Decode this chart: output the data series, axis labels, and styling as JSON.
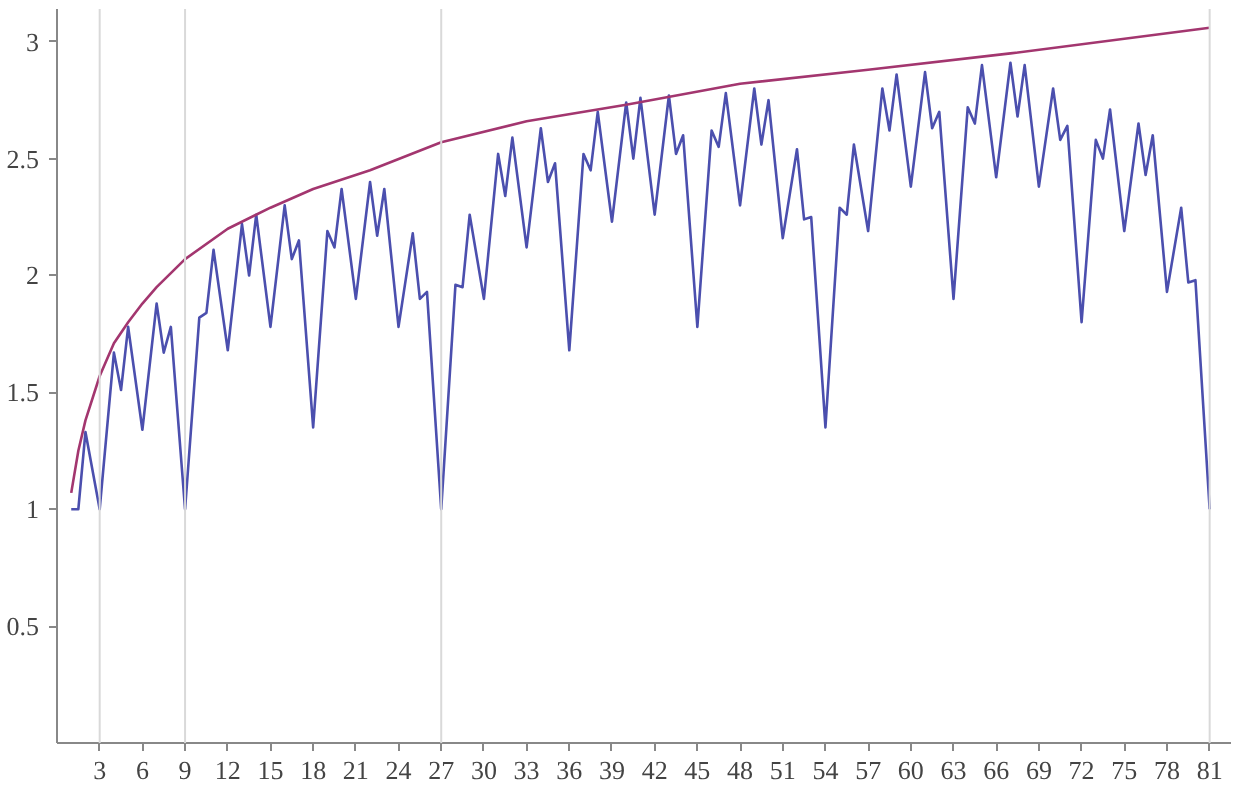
{
  "chart_data": {
    "type": "line",
    "xlim": [
      0,
      82.5
    ],
    "ylim": [
      0,
      3.14
    ],
    "xticks": [
      3,
      6,
      9,
      12,
      15,
      18,
      21,
      24,
      27,
      30,
      33,
      36,
      39,
      42,
      45,
      48,
      51,
      54,
      57,
      60,
      63,
      66,
      69,
      72,
      75,
      78,
      81
    ],
    "yticks": [
      0.5,
      1,
      1.5,
      2,
      2.5,
      3
    ],
    "grid": false,
    "marker": "none",
    "line_style": "solid",
    "ref_lines": [
      {
        "axis": "x",
        "value": 3,
        "color": "#d9d9d9"
      },
      {
        "axis": "x",
        "value": 9,
        "color": "#d9d9d9"
      },
      {
        "axis": "x",
        "value": 27,
        "color": "#d9d9d9"
      },
      {
        "axis": "x",
        "value": 81,
        "color": "#d9d9d9"
      }
    ],
    "series": [
      {
        "color": "#4b4fae",
        "x": [
          1,
          1.5,
          2,
          3,
          4,
          4.5,
          5,
          6,
          7,
          7.5,
          8,
          9,
          10,
          10.5,
          11,
          12,
          13,
          13.5,
          14,
          15,
          16,
          16.5,
          17,
          18,
          19,
          19.5,
          20,
          21,
          22,
          22.5,
          23,
          24,
          25,
          25.5,
          26,
          27,
          28,
          28.5,
          29,
          30,
          31,
          31.5,
          32,
          33,
          34,
          34.5,
          35,
          36,
          37,
          37.5,
          38,
          39,
          40,
          40.5,
          41,
          42,
          43,
          43.5,
          44,
          45,
          46,
          46.5,
          47,
          48,
          49,
          49.5,
          50,
          51,
          52,
          52.5,
          53,
          54,
          55,
          55.5,
          56,
          57,
          58,
          58.5,
          59,
          60,
          61,
          61.5,
          62,
          63,
          64,
          64.5,
          65,
          66,
          67,
          67.5,
          68,
          69,
          70,
          70.5,
          71,
          72,
          73,
          73.5,
          74,
          75,
          76,
          76.5,
          77,
          78,
          79,
          79.5,
          80,
          81
        ],
        "values": [
          1,
          1,
          1.33,
          1,
          1.67,
          1.51,
          1.78,
          1.34,
          1.88,
          1.67,
          1.78,
          1,
          1.82,
          1.84,
          2.11,
          1.68,
          2.22,
          2.0,
          2.26,
          1.78,
          2.3,
          2.07,
          2.15,
          1.35,
          2.19,
          2.12,
          2.37,
          1.9,
          2.4,
          2.17,
          2.37,
          1.78,
          2.18,
          1.9,
          1.93,
          1,
          1.96,
          1.95,
          2.26,
          1.9,
          2.52,
          2.34,
          2.59,
          2.12,
          2.63,
          2.4,
          2.48,
          1.68,
          2.52,
          2.45,
          2.7,
          2.23,
          2.74,
          2.5,
          2.76,
          2.26,
          2.77,
          2.52,
          2.6,
          1.78,
          2.62,
          2.55,
          2.78,
          2.3,
          2.8,
          2.56,
          2.75,
          2.16,
          2.54,
          2.24,
          2.25,
          1.35,
          2.29,
          2.26,
          2.56,
          2.19,
          2.8,
          2.62,
          2.86,
          2.38,
          2.87,
          2.63,
          2.7,
          1.9,
          2.72,
          2.65,
          2.9,
          2.42,
          2.91,
          2.68,
          2.9,
          2.38,
          2.8,
          2.58,
          2.64,
          1.8,
          2.58,
          2.5,
          2.71,
          2.19,
          2.65,
          2.43,
          2.6,
          1.93,
          2.29,
          1.97,
          1.98,
          1
        ]
      },
      {
        "color": "#a3366f",
        "x": [
          1,
          1.5,
          2,
          3,
          4,
          5,
          6,
          7,
          9,
          12,
          15,
          18,
          22,
          27,
          33,
          40,
          48,
          57,
          67,
          81
        ],
        "values": [
          1.07,
          1.25,
          1.38,
          1.57,
          1.71,
          1.8,
          1.88,
          1.95,
          2.07,
          2.2,
          2.29,
          2.37,
          2.45,
          2.57,
          2.66,
          2.73,
          2.82,
          2.88,
          2.95,
          3.06
        ]
      }
    ]
  }
}
